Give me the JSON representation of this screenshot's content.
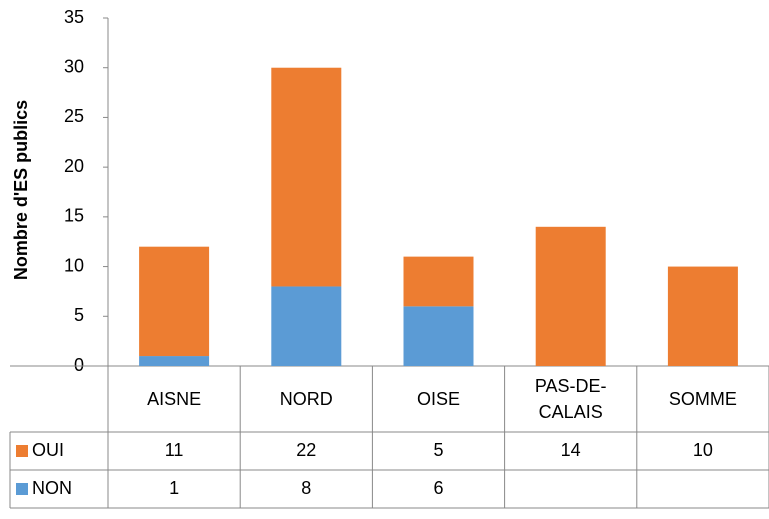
{
  "chart_data": {
    "type": "stacked_bar_with_table",
    "y_label": "Nombre d'ES publics",
    "categories": [
      "AISNE",
      "NORD",
      "OISE",
      "PAS-DE-CALAIS",
      "SOMME"
    ],
    "series": [
      {
        "name": "OUI",
        "color": "#ed7d31",
        "values": [
          11,
          22,
          5,
          14,
          10
        ]
      },
      {
        "name": "NON",
        "color": "#5b9bd5",
        "values": [
          1,
          8,
          6,
          null,
          null
        ]
      }
    ],
    "ylim": [
      0,
      35
    ],
    "yticks": [
      0,
      5,
      10,
      15,
      20,
      25,
      30,
      35
    ]
  }
}
